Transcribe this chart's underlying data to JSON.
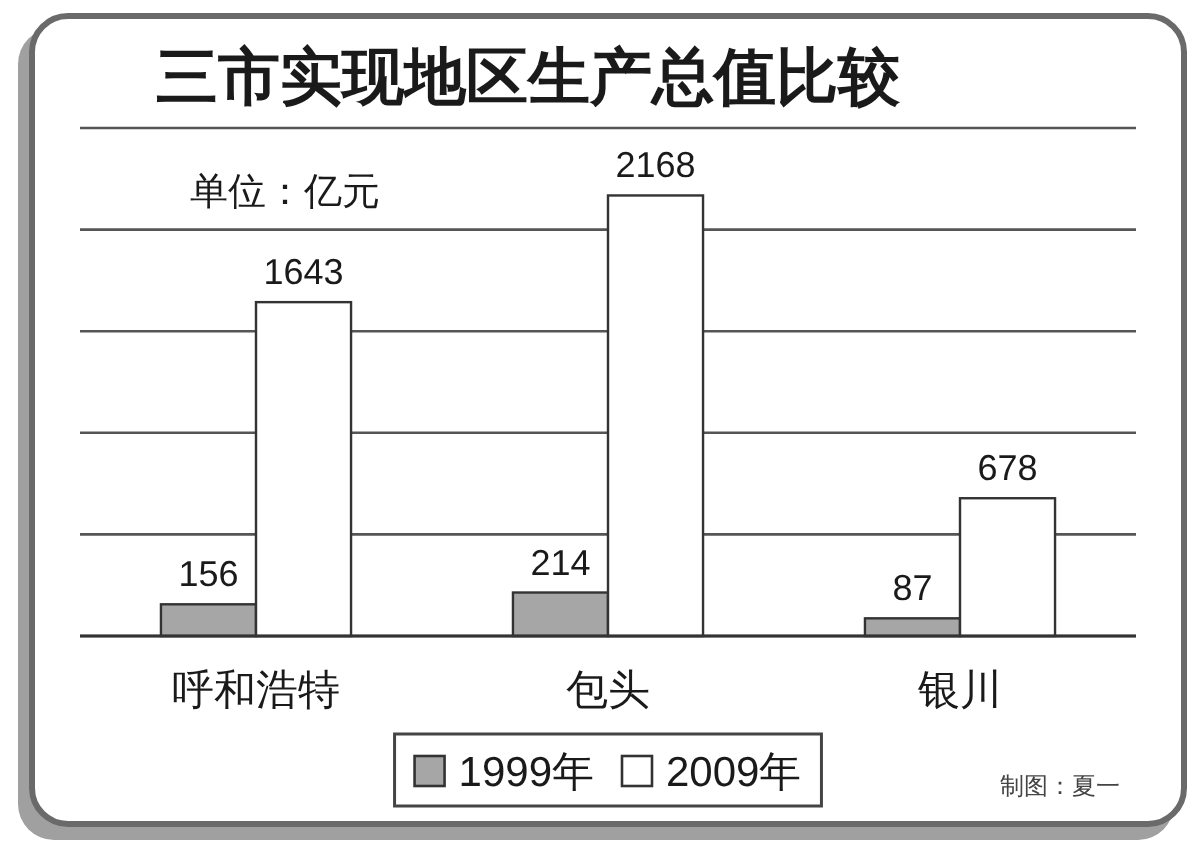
{
  "chart_data": {
    "type": "bar",
    "title": "三市实现地区生产总值比较",
    "ylabel": "单位：亿元",
    "categories": [
      "呼和浩特",
      "包头",
      "银川"
    ],
    "series": [
      {
        "name": "1999年",
        "color": "#a6a6a6",
        "values": [
          156,
          214,
          87
        ]
      },
      {
        "name": "2009年",
        "color": "#ffffff",
        "values": [
          1643,
          2168,
          678
        ]
      }
    ],
    "data_labels": true,
    "ylim": [
      0,
      2500
    ],
    "yticks": [
      0,
      500,
      1000,
      1500,
      2000,
      2500
    ],
    "tick_labels": "x",
    "grid": "y",
    "legend": "bottom",
    "annotations": [
      "制图：夏一"
    ]
  }
}
